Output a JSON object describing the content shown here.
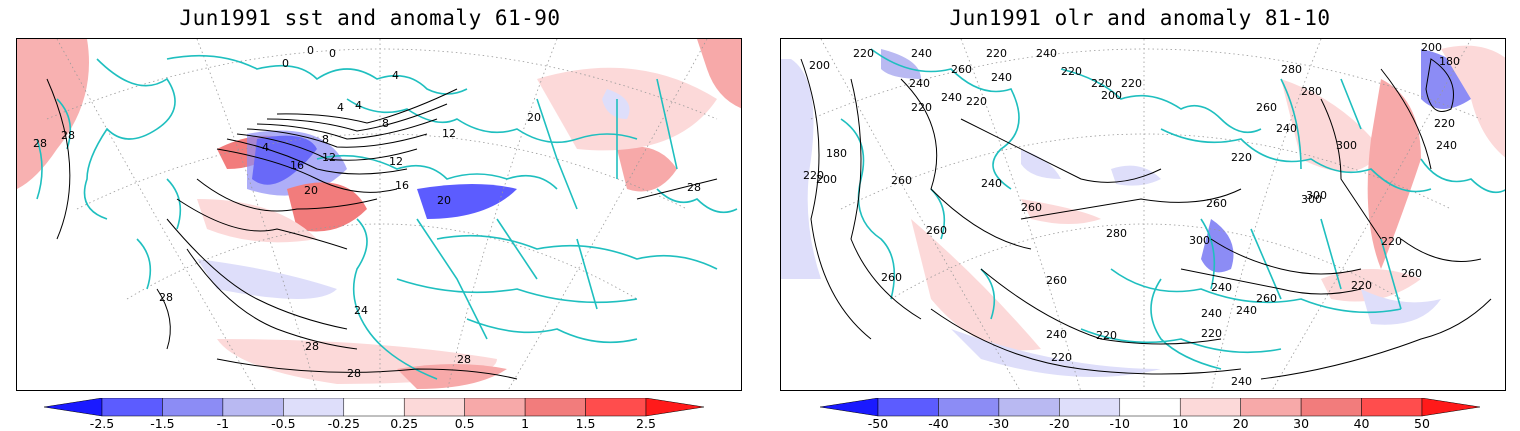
{
  "panels": [
    {
      "title": "Jun1991 sst and anomaly 61-90",
      "colorbar": {
        "labels": [
          "-2.5",
          "-1.5",
          "-1",
          "-0.5",
          "-0.25",
          "0.25",
          "0.5",
          "1",
          "1.5",
          "2.5"
        ],
        "colors": [
          "#1a1aff",
          "#5c5cff",
          "#8c8cf5",
          "#b9b9f2",
          "#dedefa",
          "#ffffff",
          "#fcd9d9",
          "#f7a9a9",
          "#f27c7c",
          "#ff4d4d",
          "#ff1a1a"
        ]
      },
      "contour_labels": [
        "0",
        "0",
        "0",
        "4",
        "4",
        "4",
        "8",
        "4",
        "8",
        "12",
        "12",
        "16",
        "16",
        "20",
        "20",
        "28",
        "28",
        "28",
        "24",
        "28",
        "28",
        "28",
        "12",
        "20"
      ]
    },
    {
      "title": "Jun1991 olr and anomaly 81-10",
      "colorbar": {
        "labels": [
          "-50",
          "-40",
          "-30",
          "-20",
          "-10",
          "10",
          "20",
          "30",
          "40",
          "50"
        ],
        "colors": [
          "#1a1aff",
          "#5c5cff",
          "#8c8cf5",
          "#b9b9f2",
          "#dedefa",
          "#ffffff",
          "#fcd9d9",
          "#f7a9a9",
          "#f27c7c",
          "#ff4d4d",
          "#ff1a1a"
        ]
      },
      "contour_labels": [
        "220",
        "240",
        "200",
        "220",
        "240",
        "260",
        "240",
        "220",
        "200",
        "240",
        "240",
        "220",
        "220",
        "220",
        "220",
        "180",
        "200",
        "220",
        "260",
        "240",
        "260",
        "260",
        "280",
        "300",
        "300",
        "260",
        "220",
        "260",
        "280",
        "260",
        "240",
        "220",
        "220",
        "240",
        "240",
        "260",
        "300",
        "220",
        "240",
        "300",
        "260",
        "240",
        "280",
        "220",
        "260",
        "240",
        "240",
        "200",
        "180",
        "220",
        "220"
      ]
    }
  ],
  "colors": {
    "coast": "#1fbfbf",
    "contour": "#000000",
    "grid": "#9a9a9a"
  }
}
